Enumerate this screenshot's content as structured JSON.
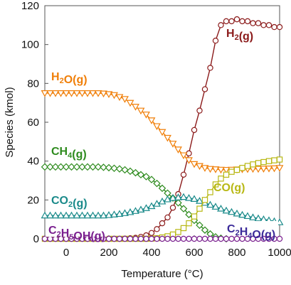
{
  "chart_data": {
    "type": "line",
    "xlabel": "Temperature (°C)",
    "ylabel": "Species (kmol)",
    "xlim": [
      -100,
      1000
    ],
    "ylim": [
      0,
      120
    ],
    "x_ticks": [
      0,
      200,
      400,
      600,
      800,
      1000
    ],
    "y_ticks": [
      0,
      20,
      40,
      60,
      80,
      100,
      120
    ],
    "grid": false,
    "legend": "inline labels near curves",
    "series": [
      {
        "name": "H2(g)",
        "label_parts": [
          [
            "H",
            false
          ],
          [
            "2",
            true
          ],
          [
            "(g)",
            false
          ]
        ],
        "color": "#8b1a1a",
        "marker": "circle",
        "x": [
          -100,
          -75,
          -50,
          -25,
          0,
          25,
          50,
          75,
          100,
          125,
          150,
          175,
          200,
          225,
          250,
          275,
          300,
          325,
          350,
          375,
          400,
          425,
          450,
          475,
          500,
          525,
          550,
          575,
          600,
          625,
          650,
          675,
          700,
          725,
          750,
          775,
          800,
          825,
          850,
          875,
          900,
          925,
          950,
          975,
          1000
        ],
        "y": [
          0,
          0,
          0,
          0,
          0,
          0,
          0,
          0,
          0,
          0,
          0,
          0,
          0,
          0,
          0,
          0.1,
          0.3,
          0.5,
          1.0,
          1.8,
          3,
          5,
          8,
          11,
          16,
          23,
          33,
          44,
          56,
          66,
          77,
          88,
          102,
          110,
          112,
          112,
          113,
          112,
          112,
          111,
          111,
          110,
          110,
          109,
          109
        ]
      },
      {
        "name": "H2O(g)",
        "label_parts": [
          [
            "H",
            false
          ],
          [
            "2",
            true
          ],
          [
            "O(g)",
            false
          ]
        ],
        "color": "#f07f09",
        "marker": "triangle-down",
        "x": [
          -100,
          -75,
          -50,
          -25,
          0,
          25,
          50,
          75,
          100,
          125,
          150,
          175,
          200,
          225,
          250,
          275,
          300,
          325,
          350,
          375,
          400,
          425,
          450,
          475,
          500,
          525,
          550,
          575,
          600,
          625,
          650,
          675,
          700,
          725,
          750,
          775,
          800,
          825,
          850,
          875,
          900,
          925,
          950,
          975,
          1000
        ],
        "y": [
          75,
          75,
          75,
          75,
          75,
          75,
          75,
          75,
          75,
          75,
          75,
          74.8,
          74.5,
          74,
          73,
          72,
          70,
          68,
          66,
          64,
          61,
          58,
          55,
          52,
          49,
          46,
          43,
          40.5,
          38.5,
          37.5,
          36.5,
          36,
          35.8,
          35.6,
          35.5,
          35.6,
          35.7,
          35.8,
          35.9,
          36,
          36,
          36.1,
          36.2,
          36.3,
          36.5
        ]
      },
      {
        "name": "CH4(g)",
        "label_parts": [
          [
            "CH",
            false
          ],
          [
            "4",
            true
          ],
          [
            "(g)",
            false
          ]
        ],
        "color": "#2e8b1e",
        "marker": "diamond",
        "x": [
          -100,
          -75,
          -50,
          -25,
          0,
          25,
          50,
          75,
          100,
          125,
          150,
          175,
          200,
          225,
          250,
          275,
          300,
          325,
          350,
          375,
          400,
          425,
          450,
          475,
          500,
          525,
          550,
          575,
          600,
          625,
          650,
          675,
          700,
          725,
          750
        ],
        "y": [
          37,
          37,
          37,
          37,
          37,
          37,
          37,
          37,
          37,
          37,
          37,
          36.8,
          36.6,
          36.3,
          36,
          35.5,
          34.8,
          34,
          33,
          32,
          30.5,
          28.5,
          26,
          23.5,
          21,
          18.5,
          15.5,
          12.5,
          9.5,
          7,
          4.5,
          2.5,
          1,
          0.3,
          0
        ]
      },
      {
        "name": "CO2(g)",
        "label_parts": [
          [
            "CO",
            false
          ],
          [
            "2",
            true
          ],
          [
            "(g)",
            false
          ]
        ],
        "color": "#1a8a8a",
        "marker": "triangle-up",
        "x": [
          -100,
          -75,
          -50,
          -25,
          0,
          25,
          50,
          75,
          100,
          125,
          150,
          175,
          200,
          225,
          250,
          275,
          300,
          325,
          350,
          375,
          400,
          425,
          450,
          475,
          500,
          525,
          550,
          575,
          600,
          625,
          650,
          675,
          700,
          725,
          750,
          775,
          800,
          825,
          850,
          875,
          900,
          925,
          950,
          975,
          1000
        ],
        "y": [
          12,
          12,
          12,
          12,
          12,
          12,
          12,
          12,
          12,
          12,
          12,
          12,
          12.2,
          12.5,
          12.8,
          13.2,
          13.7,
          14.3,
          15,
          15.8,
          16.8,
          18,
          19.2,
          20.3,
          21,
          21.3,
          21.5,
          21,
          20.5,
          19.5,
          18.5,
          17.5,
          16.5,
          15.5,
          14.5,
          13.8,
          13,
          12.3,
          11.7,
          11,
          10.5,
          10,
          9.5,
          9,
          8.5
        ]
      },
      {
        "name": "CO(g)",
        "label_parts": [
          [
            "CO(g)",
            false
          ]
        ],
        "color": "#b8b814",
        "marker": "square",
        "x": [
          -100,
          -75,
          -50,
          -25,
          0,
          25,
          50,
          75,
          100,
          125,
          150,
          175,
          200,
          225,
          250,
          275,
          300,
          325,
          350,
          375,
          400,
          425,
          450,
          475,
          500,
          525,
          550,
          575,
          600,
          625,
          650,
          675,
          700,
          725,
          750,
          775,
          800,
          825,
          850,
          875,
          900,
          925,
          950,
          975,
          1000
        ],
        "y": [
          0,
          0,
          0,
          0,
          0,
          0,
          0,
          0,
          0,
          0,
          0,
          0,
          0,
          0,
          0,
          0,
          0,
          0,
          0,
          0,
          0.1,
          0.3,
          0.7,
          1.3,
          2.2,
          3.5,
          5.5,
          8,
          11.5,
          15.5,
          20,
          24,
          28,
          31,
          33,
          34.5,
          35.5,
          36.5,
          37.5,
          38.3,
          39,
          39.5,
          40,
          40.4,
          40.8
        ]
      },
      {
        "name": "C2H5OH(g)",
        "label_parts": [
          [
            "C",
            false
          ],
          [
            "2",
            true
          ],
          [
            "H",
            false
          ],
          [
            "5",
            true
          ],
          [
            "OH(g)",
            false
          ]
        ],
        "color": "#7a1f8f",
        "marker": "circle",
        "x": [
          -100,
          -75,
          -50,
          -25,
          0,
          25,
          50,
          75,
          100,
          125,
          150,
          175,
          200,
          225,
          250,
          275,
          300,
          325,
          350,
          375,
          400,
          425,
          450,
          475,
          500,
          525,
          550,
          575,
          600,
          625,
          650,
          675,
          700,
          725,
          750,
          775,
          800,
          825,
          850,
          875,
          900,
          925,
          950,
          975,
          1000
        ],
        "y": [
          0,
          0,
          0,
          0,
          0,
          0,
          0,
          0,
          0,
          0,
          0,
          0,
          0,
          0,
          0,
          0,
          0,
          0,
          0,
          0,
          0,
          0,
          0,
          0,
          0,
          0,
          0,
          0,
          0,
          0,
          0,
          0,
          0,
          0,
          0,
          0,
          0,
          0,
          0,
          0,
          0,
          0,
          0,
          0,
          0
        ]
      },
      {
        "name": "C2H4O(g)",
        "label_parts": [
          [
            "C",
            false
          ],
          [
            "2",
            true
          ],
          [
            "H",
            false
          ],
          [
            "4",
            true
          ],
          [
            "O(g)",
            false
          ]
        ],
        "color": "#3b2a99",
        "marker": "none",
        "x": [],
        "y": []
      }
    ]
  }
}
